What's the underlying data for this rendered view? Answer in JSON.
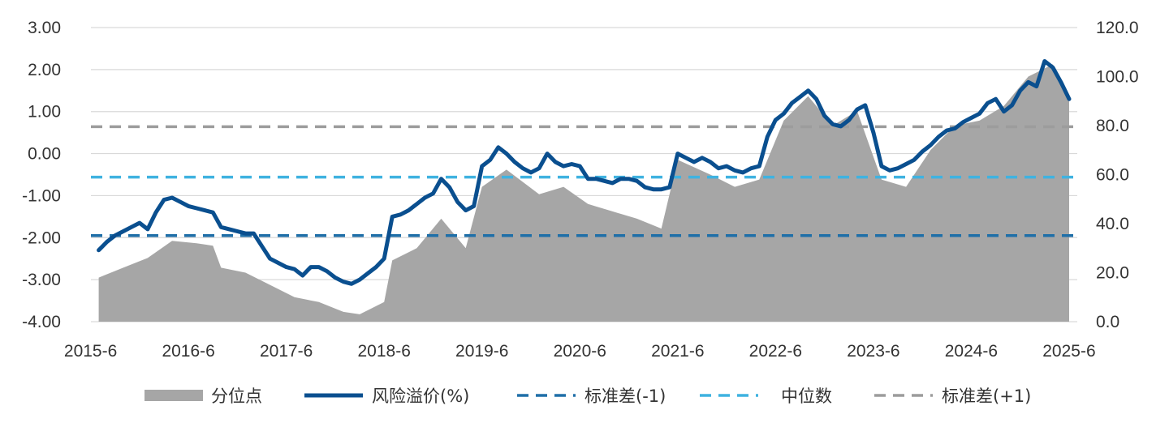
{
  "chart_data": {
    "type": "line",
    "title": "",
    "xlabel": "",
    "ylabel": "",
    "x_ticks": [
      "2015-6",
      "2016-6",
      "2017-6",
      "2018-6",
      "2019-6",
      "2020-6",
      "2021-6",
      "2022-6",
      "2023-6",
      "2024-6",
      "2025-6"
    ],
    "y_left": {
      "ylim": [
        -4,
        3
      ],
      "ticks": [
        "3.00",
        "2.00",
        "1.00",
        "0.00",
        "-1.00",
        "-2.00",
        "-3.00",
        "-4.00"
      ]
    },
    "y_right": {
      "ylim": [
        0,
        120
      ],
      "ticks": [
        "120.0",
        "100.0",
        "80.0",
        "60.0",
        "40.0",
        "20.0",
        "0.0"
      ]
    },
    "grid": true,
    "legend_position": "bottom",
    "series": [
      {
        "name": "分位点",
        "kind": "area",
        "axis": "right",
        "color": "#a6a6a6",
        "points": [
          [
            "2015-07",
            18
          ],
          [
            "2015-10",
            22
          ],
          [
            "2016-01",
            26
          ],
          [
            "2016-04",
            33
          ],
          [
            "2016-07",
            32
          ],
          [
            "2016-09",
            31
          ],
          [
            "2016-10",
            22
          ],
          [
            "2017-01",
            20
          ],
          [
            "2017-04",
            15
          ],
          [
            "2017-07",
            10
          ],
          [
            "2017-10",
            8
          ],
          [
            "2018-01",
            4
          ],
          [
            "2018-03",
            3
          ],
          [
            "2018-06",
            8
          ],
          [
            "2018-07",
            25
          ],
          [
            "2018-10",
            30
          ],
          [
            "2019-01",
            42
          ],
          [
            "2019-04",
            30
          ],
          [
            "2019-06",
            55
          ],
          [
            "2019-09",
            62
          ],
          [
            "2020-01",
            52
          ],
          [
            "2020-04",
            55
          ],
          [
            "2020-07",
            48
          ],
          [
            "2020-10",
            45
          ],
          [
            "2021-01",
            42
          ],
          [
            "2021-04",
            38
          ],
          [
            "2021-06",
            66
          ],
          [
            "2021-10",
            60
          ],
          [
            "2022-01",
            55
          ],
          [
            "2022-04",
            58
          ],
          [
            "2022-07",
            82
          ],
          [
            "2022-10",
            92
          ],
          [
            "2023-01",
            80
          ],
          [
            "2023-04",
            86
          ],
          [
            "2023-07",
            58
          ],
          [
            "2023-10",
            55
          ],
          [
            "2024-01",
            70
          ],
          [
            "2024-04",
            80
          ],
          [
            "2024-07",
            82
          ],
          [
            "2024-10",
            88
          ],
          [
            "2025-01",
            100
          ],
          [
            "2025-04",
            105
          ],
          [
            "2025-06",
            92
          ]
        ]
      },
      {
        "name": "风险溢价(%)",
        "kind": "line",
        "axis": "left",
        "color": "#0a4f8f",
        "points": [
          [
            "2015-07",
            -2.3
          ],
          [
            "2015-08",
            -2.1
          ],
          [
            "2015-09",
            -1.95
          ],
          [
            "2015-10",
            -1.85
          ],
          [
            "2015-11",
            -1.75
          ],
          [
            "2015-12",
            -1.65
          ],
          [
            "2016-01",
            -1.8
          ],
          [
            "2016-02",
            -1.4
          ],
          [
            "2016-03",
            -1.1
          ],
          [
            "2016-04",
            -1.05
          ],
          [
            "2016-05",
            -1.15
          ],
          [
            "2016-06",
            -1.25
          ],
          [
            "2016-07",
            -1.3
          ],
          [
            "2016-08",
            -1.35
          ],
          [
            "2016-09",
            -1.4
          ],
          [
            "2016-10",
            -1.75
          ],
          [
            "2016-11",
            -1.8
          ],
          [
            "2016-12",
            -1.85
          ],
          [
            "2017-01",
            -1.9
          ],
          [
            "2017-02",
            -1.9
          ],
          [
            "2017-03",
            -2.2
          ],
          [
            "2017-04",
            -2.5
          ],
          [
            "2017-05",
            -2.6
          ],
          [
            "2017-06",
            -2.7
          ],
          [
            "2017-07",
            -2.75
          ],
          [
            "2017-08",
            -2.9
          ],
          [
            "2017-09",
            -2.7
          ],
          [
            "2017-10",
            -2.7
          ],
          [
            "2017-11",
            -2.8
          ],
          [
            "2017-12",
            -2.95
          ],
          [
            "2018-01",
            -3.05
          ],
          [
            "2018-02",
            -3.1
          ],
          [
            "2018-03",
            -3.0
          ],
          [
            "2018-04",
            -2.85
          ],
          [
            "2018-05",
            -2.7
          ],
          [
            "2018-06",
            -2.5
          ],
          [
            "2018-07",
            -1.5
          ],
          [
            "2018-08",
            -1.45
          ],
          [
            "2018-09",
            -1.35
          ],
          [
            "2018-10",
            -1.2
          ],
          [
            "2018-11",
            -1.05
          ],
          [
            "2018-12",
            -0.95
          ],
          [
            "2019-01",
            -0.6
          ],
          [
            "2019-02",
            -0.8
          ],
          [
            "2019-03",
            -1.15
          ],
          [
            "2019-04",
            -1.35
          ],
          [
            "2019-05",
            -1.25
          ],
          [
            "2019-06",
            -0.3
          ],
          [
            "2019-07",
            -0.15
          ],
          [
            "2019-08",
            0.15
          ],
          [
            "2019-09",
            0.0
          ],
          [
            "2019-10",
            -0.2
          ],
          [
            "2019-11",
            -0.35
          ],
          [
            "2019-12",
            -0.45
          ],
          [
            "2020-01",
            -0.35
          ],
          [
            "2020-02",
            0.0
          ],
          [
            "2020-03",
            -0.2
          ],
          [
            "2020-04",
            -0.3
          ],
          [
            "2020-05",
            -0.25
          ],
          [
            "2020-06",
            -0.3
          ],
          [
            "2020-07",
            -0.6
          ],
          [
            "2020-08",
            -0.6
          ],
          [
            "2020-09",
            -0.65
          ],
          [
            "2020-10",
            -0.7
          ],
          [
            "2020-11",
            -0.6
          ],
          [
            "2020-12",
            -0.6
          ],
          [
            "2021-01",
            -0.65
          ],
          [
            "2021-02",
            -0.8
          ],
          [
            "2021-03",
            -0.85
          ],
          [
            "2021-04",
            -0.85
          ],
          [
            "2021-05",
            -0.8
          ],
          [
            "2021-06",
            0.0
          ],
          [
            "2021-07",
            -0.1
          ],
          [
            "2021-08",
            -0.2
          ],
          [
            "2021-09",
            -0.1
          ],
          [
            "2021-10",
            -0.2
          ],
          [
            "2021-11",
            -0.35
          ],
          [
            "2021-12",
            -0.3
          ],
          [
            "2022-01",
            -0.4
          ],
          [
            "2022-02",
            -0.45
          ],
          [
            "2022-03",
            -0.35
          ],
          [
            "2022-04",
            -0.3
          ],
          [
            "2022-05",
            0.4
          ],
          [
            "2022-06",
            0.8
          ],
          [
            "2022-07",
            0.95
          ],
          [
            "2022-08",
            1.2
          ],
          [
            "2022-09",
            1.35
          ],
          [
            "2022-10",
            1.5
          ],
          [
            "2022-11",
            1.3
          ],
          [
            "2022-12",
            0.9
          ],
          [
            "2023-01",
            0.7
          ],
          [
            "2023-02",
            0.65
          ],
          [
            "2023-03",
            0.8
          ],
          [
            "2023-04",
            1.05
          ],
          [
            "2023-05",
            1.15
          ],
          [
            "2023-06",
            0.5
          ],
          [
            "2023-07",
            -0.3
          ],
          [
            "2023-08",
            -0.4
          ],
          [
            "2023-09",
            -0.35
          ],
          [
            "2023-10",
            -0.25
          ],
          [
            "2023-11",
            -0.15
          ],
          [
            "2023-12",
            0.05
          ],
          [
            "2024-01",
            0.2
          ],
          [
            "2024-02",
            0.4
          ],
          [
            "2024-03",
            0.55
          ],
          [
            "2024-04",
            0.6
          ],
          [
            "2024-05",
            0.75
          ],
          [
            "2024-06",
            0.85
          ],
          [
            "2024-07",
            0.95
          ],
          [
            "2024-08",
            1.2
          ],
          [
            "2024-09",
            1.3
          ],
          [
            "2024-10",
            1.0
          ],
          [
            "2024-11",
            1.15
          ],
          [
            "2024-12",
            1.5
          ],
          [
            "2025-01",
            1.7
          ],
          [
            "2025-02",
            1.6
          ],
          [
            "2025-03",
            2.2
          ],
          [
            "2025-04",
            2.05
          ],
          [
            "2025-05",
            1.7
          ],
          [
            "2025-06",
            1.3
          ]
        ]
      },
      {
        "name": "标准差(-1)",
        "kind": "hline",
        "axis": "left",
        "color": "#1f6fa8",
        "value": -1.95
      },
      {
        "name": "中位数",
        "kind": "hline",
        "axis": "left",
        "color": "#3fb2e0",
        "value": -0.56
      },
      {
        "name": "标准差(+1)",
        "kind": "hline",
        "axis": "left",
        "color": "#9c9c9c",
        "value": 0.64
      }
    ]
  }
}
